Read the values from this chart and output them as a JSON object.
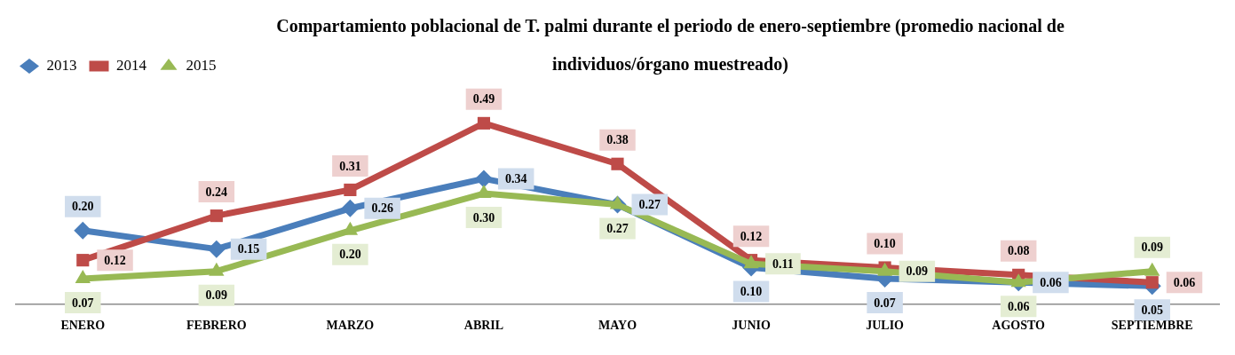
{
  "chart_data": {
    "type": "line",
    "title": "Compartamiento poblacional de T. palmi durante el periodo de enero-septiembre (promedio nacional de individuos/órgano muestreado)",
    "categories": [
      "ENERO",
      "FEBRERO",
      "MARZO",
      "ABRIL",
      "MAYO",
      "JUNIO",
      "JULIO",
      "AGOSTO",
      "SEPTIEMBRE"
    ],
    "series": [
      {
        "name": "2013",
        "color": "#4a7ebb",
        "marker": "diamond",
        "values": [
          0.2,
          0.15,
          0.26,
          0.34,
          0.27,
          0.1,
          0.07,
          0.06,
          0.05
        ],
        "value_labels": [
          "0.20",
          "0.15",
          "0.26",
          "0.34",
          "0.27",
          "0.10",
          "0.07",
          "0.06",
          "0.05"
        ]
      },
      {
        "name": "2014",
        "color": "#be4b48",
        "marker": "square",
        "values": [
          0.12,
          0.24,
          0.31,
          0.49,
          0.38,
          0.12,
          0.1,
          0.08,
          0.06
        ],
        "value_labels": [
          "0.12",
          "0.24",
          "0.31",
          "0.49",
          "0.38",
          "0.12",
          "0.10",
          "0.08",
          "0.06"
        ]
      },
      {
        "name": "2015",
        "color": "#98b954",
        "marker": "triangle",
        "values": [
          0.07,
          0.09,
          0.2,
          0.3,
          0.27,
          0.11,
          0.09,
          0.06,
          0.09
        ],
        "value_labels": [
          "0.07",
          "0.09",
          "0.20",
          "0.30",
          "0.27",
          "0.11",
          "0.09",
          "0.06",
          "0.09"
        ]
      }
    ],
    "legend": "top left",
    "grid": false
  }
}
